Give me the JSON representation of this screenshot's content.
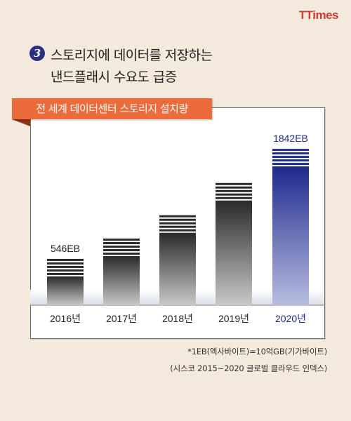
{
  "brand": {
    "logo": "TTimes",
    "accent": "#d2392f"
  },
  "headline": {
    "number": "3",
    "line1": "스토리지에 데이터를 저장하는",
    "line2": "낸드플래시 수요도 급증"
  },
  "chart_data": {
    "type": "bar",
    "title": "전 세계 데이터센터 스토리지 설치량",
    "categories": [
      "2016년",
      "2017년",
      "2018년",
      "2019년",
      "2020년"
    ],
    "values": [
      546,
      785,
      1060,
      1440,
      1842
    ],
    "unit": "EB",
    "data_labels": [
      "546EB",
      "",
      "",
      "",
      "1842EB"
    ],
    "ylim": [
      0,
      2000
    ],
    "highlight_index": 4,
    "colors": {
      "normal": "#2a2a2a",
      "highlight": "#1f2a8c",
      "title_tab": "#ea6b3b"
    },
    "grid": false
  },
  "footnotes": {
    "line1": "*1EB(엑사바이트)=10억GB(기가바이트)",
    "line2": "(시스코 2015~2020 글로벌 클라우드 인덱스)"
  }
}
